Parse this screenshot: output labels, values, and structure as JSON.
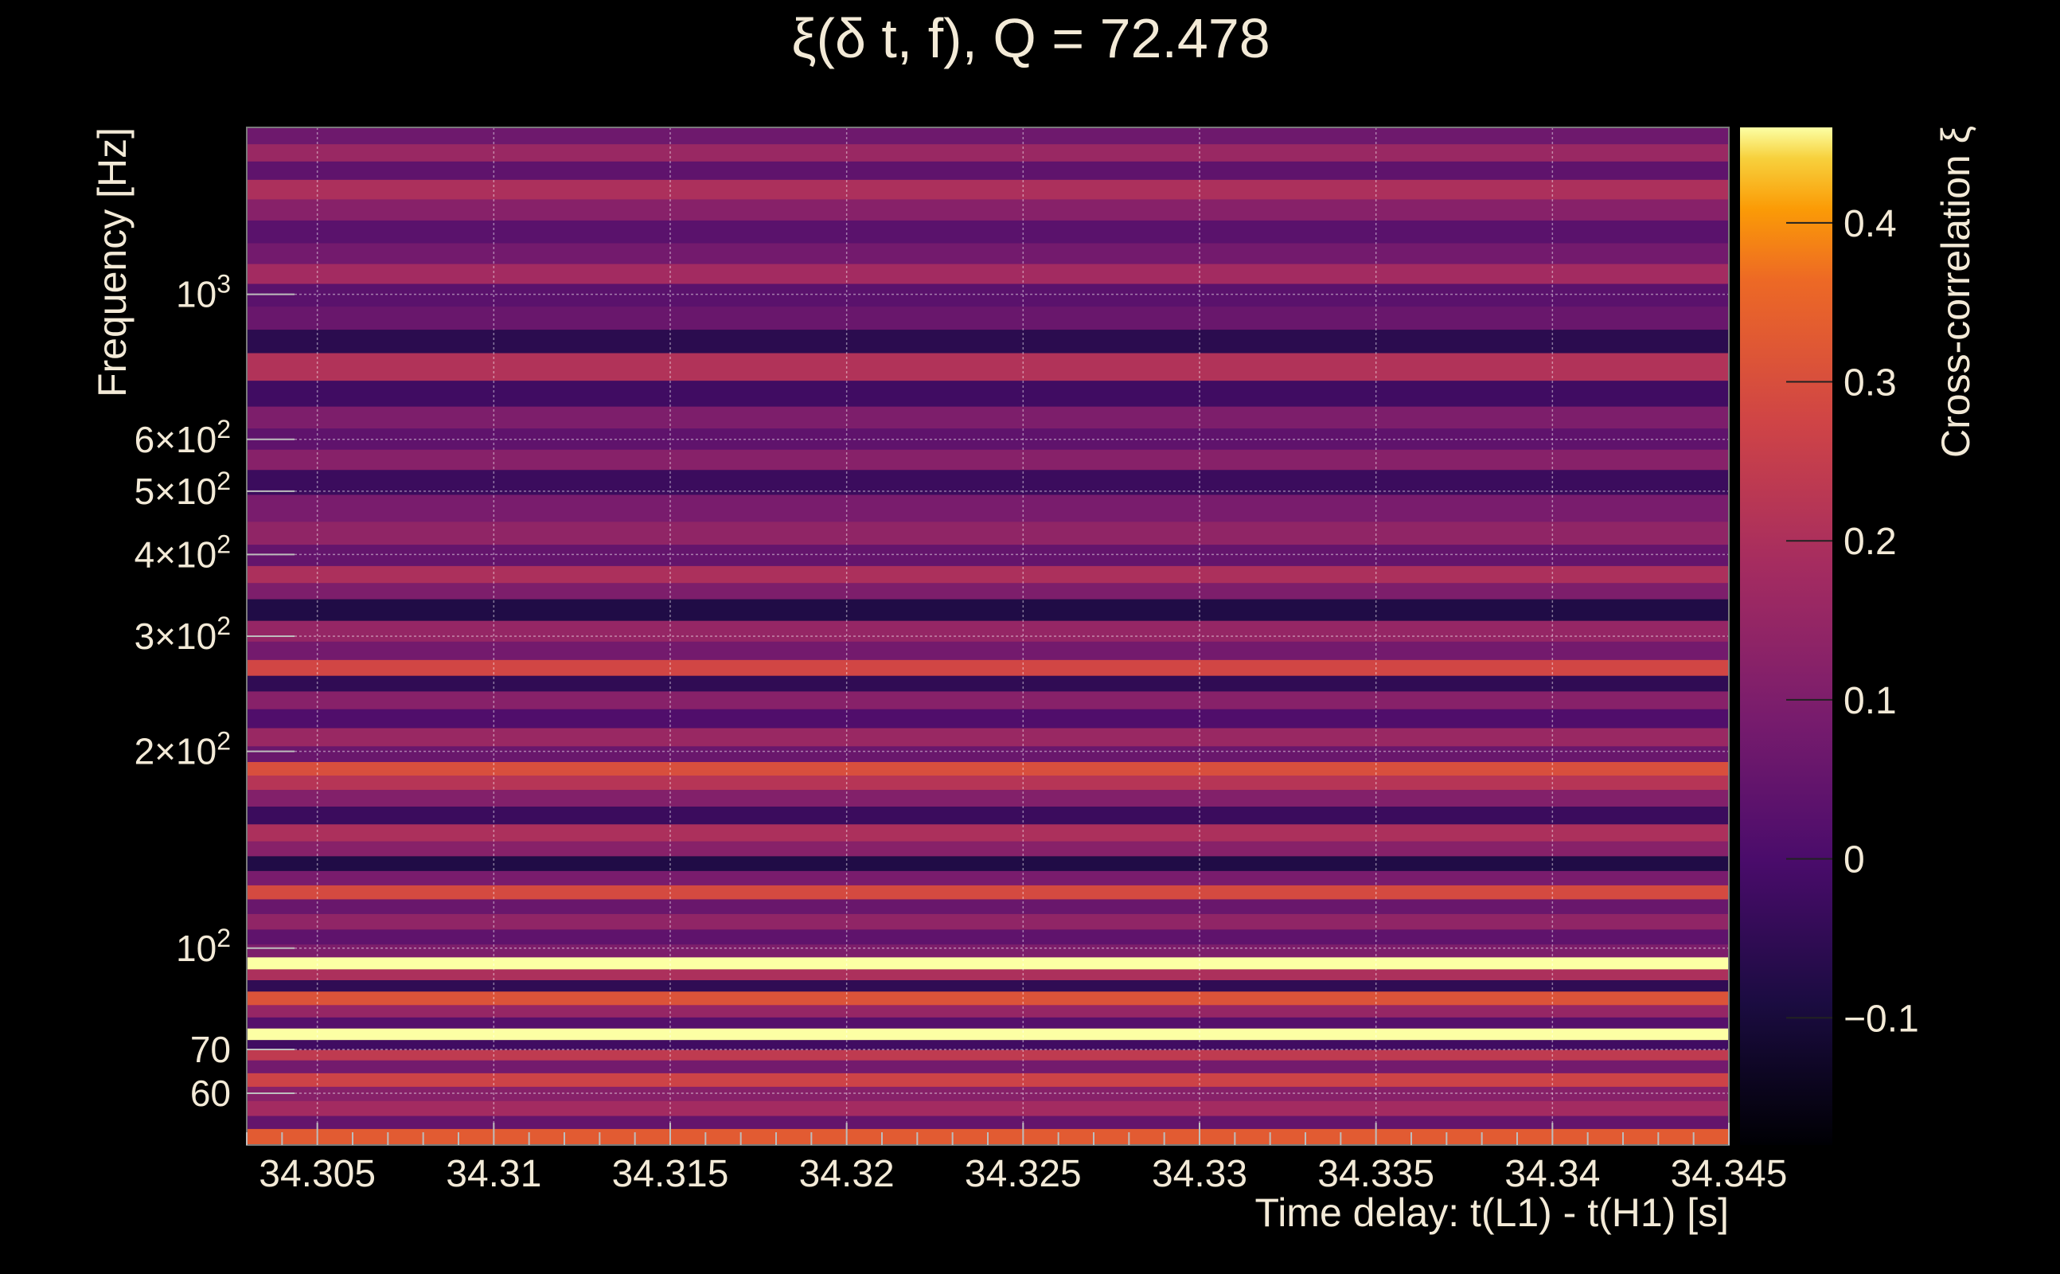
{
  "chart_data": {
    "type": "heatmap",
    "title": "ξ(δ t, f), Q = 72.478",
    "xlabel": "Time delay: t(L1) - t(H1) [s]",
    "ylabel": "Frequency [Hz]",
    "colorbar_label": "Cross-correlation ξ",
    "xlim": [
      34.303,
      34.345
    ],
    "ylim": [
      50,
      1800
    ],
    "yscale": "log",
    "clim": [
      -0.18,
      0.46
    ],
    "grid": true,
    "colormap": "inferno",
    "x_ticks": [
      34.305,
      34.31,
      34.315,
      34.32,
      34.325,
      34.33,
      34.335,
      34.34,
      34.345
    ],
    "x_tick_labels": [
      "34.305",
      "34.31",
      "34.315",
      "34.32",
      "34.325",
      "34.33",
      "34.335",
      "34.34",
      "34.345"
    ],
    "y_ticks": [
      {
        "value": 60,
        "label": "60",
        "sup": ""
      },
      {
        "value": 70,
        "label": "70",
        "sup": ""
      },
      {
        "value": 100,
        "label": "10",
        "sup": "2"
      },
      {
        "value": 200,
        "label": "2×10",
        "sup": "2"
      },
      {
        "value": 300,
        "label": "3×10",
        "sup": "2"
      },
      {
        "value": 400,
        "label": "4×10",
        "sup": "2"
      },
      {
        "value": 500,
        "label": "5×10",
        "sup": "2"
      },
      {
        "value": 600,
        "label": "6×10",
        "sup": "2"
      },
      {
        "value": 1000,
        "label": "10",
        "sup": "3"
      }
    ],
    "colorbar_ticks": [
      -0.1,
      0,
      0.1,
      0.2,
      0.3,
      0.4
    ],
    "colorbar_tick_labels": [
      "−0.1",
      "0",
      "0.1",
      "0.2",
      "0.3",
      "0.4"
    ],
    "frequency_bands": [
      {
        "f": 52,
        "value": 0.33
      },
      {
        "f": 54,
        "value": 0.05
      },
      {
        "f": 57,
        "value": 0.18
      },
      {
        "f": 60,
        "value": 0.12
      },
      {
        "f": 63,
        "value": 0.27
      },
      {
        "f": 66,
        "value": 0.08
      },
      {
        "f": 69,
        "value": 0.24
      },
      {
        "f": 71,
        "value": -0.02
      },
      {
        "f": 74,
        "value": 0.46
      },
      {
        "f": 77,
        "value": 0.02
      },
      {
        "f": 80,
        "value": 0.15
      },
      {
        "f": 84,
        "value": 0.31
      },
      {
        "f": 88,
        "value": -0.05
      },
      {
        "f": 91,
        "value": 0.2
      },
      {
        "f": 95,
        "value": 0.46
      },
      {
        "f": 99,
        "value": 0.1
      },
      {
        "f": 104,
        "value": 0.04
      },
      {
        "f": 110,
        "value": 0.14
      },
      {
        "f": 116,
        "value": 0.06
      },
      {
        "f": 122,
        "value": 0.29
      },
      {
        "f": 128,
        "value": 0.09
      },
      {
        "f": 135,
        "value": -0.08
      },
      {
        "f": 142,
        "value": 0.12
      },
      {
        "f": 150,
        "value": 0.2
      },
      {
        "f": 160,
        "value": -0.03
      },
      {
        "f": 170,
        "value": 0.11
      },
      {
        "f": 180,
        "value": 0.22
      },
      {
        "f": 188,
        "value": 0.3
      },
      {
        "f": 198,
        "value": 0.06
      },
      {
        "f": 210,
        "value": 0.16
      },
      {
        "f": 225,
        "value": 0.01
      },
      {
        "f": 240,
        "value": 0.12
      },
      {
        "f": 255,
        "value": -0.05
      },
      {
        "f": 268,
        "value": 0.28
      },
      {
        "f": 285,
        "value": 0.08
      },
      {
        "f": 305,
        "value": 0.15
      },
      {
        "f": 330,
        "value": -0.08
      },
      {
        "f": 355,
        "value": 0.1
      },
      {
        "f": 370,
        "value": 0.2
      },
      {
        "f": 400,
        "value": 0.05
      },
      {
        "f": 430,
        "value": 0.14
      },
      {
        "f": 470,
        "value": 0.09
      },
      {
        "f": 520,
        "value": -0.03
      },
      {
        "f": 560,
        "value": 0.12
      },
      {
        "f": 600,
        "value": 0.04
      },
      {
        "f": 650,
        "value": 0.1
      },
      {
        "f": 700,
        "value": -0.02
      },
      {
        "f": 780,
        "value": 0.21
      },
      {
        "f": 850,
        "value": -0.06
      },
      {
        "f": 920,
        "value": 0.06
      },
      {
        "f": 1000,
        "value": 0.03
      },
      {
        "f": 1080,
        "value": 0.18
      },
      {
        "f": 1150,
        "value": 0.08
      },
      {
        "f": 1250,
        "value": 0.03
      },
      {
        "f": 1350,
        "value": 0.12
      },
      {
        "f": 1450,
        "value": 0.2
      },
      {
        "f": 1550,
        "value": 0.04
      },
      {
        "f": 1650,
        "value": 0.16
      },
      {
        "f": 1750,
        "value": 0.07
      }
    ]
  }
}
